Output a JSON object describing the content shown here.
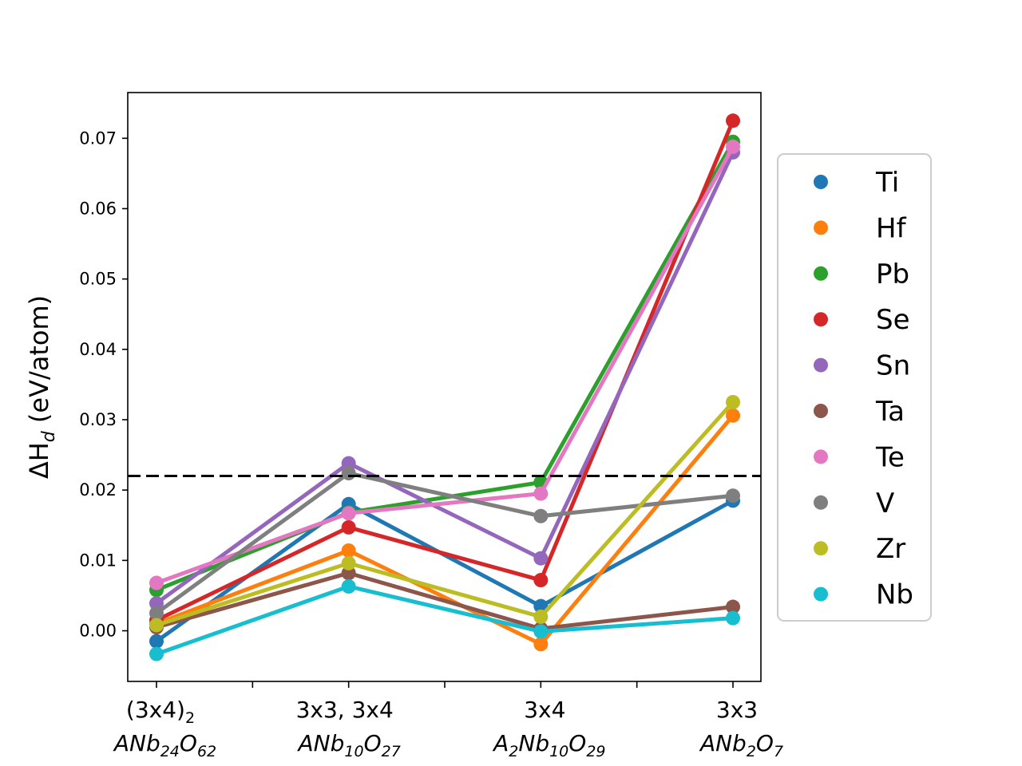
{
  "chart_data": {
    "type": "line",
    "categories": [
      {
        "top": "(3x4)",
        "top_sub": "2",
        "formula": [
          [
            "A",
            ""
          ],
          [
            "Nb",
            "24"
          ],
          [
            "O",
            "62"
          ]
        ]
      },
      {
        "top": "3x3, 3x4",
        "top_sub": "",
        "formula": [
          [
            "A",
            ""
          ],
          [
            "Nb",
            "10"
          ],
          [
            "O",
            "27"
          ]
        ]
      },
      {
        "top": "3x4",
        "top_sub": "",
        "formula": [
          [
            "A",
            "2"
          ],
          [
            "Nb",
            "10"
          ],
          [
            "O",
            "29"
          ]
        ]
      },
      {
        "top": "3x3",
        "top_sub": "",
        "formula": [
          [
            "A",
            ""
          ],
          [
            "Nb",
            "2"
          ],
          [
            "O",
            "7"
          ]
        ]
      }
    ],
    "ylabel": {
      "main": "ΔH",
      "sub": "d",
      "unit": " (eV/atom)"
    },
    "ylim": [
      -0.0072,
      0.0765
    ],
    "yticks": [
      0.0,
      0.01,
      0.02,
      0.03,
      0.04,
      0.05,
      0.06,
      0.07
    ],
    "ytick_labels": [
      "0.00",
      "0.01",
      "0.02",
      "0.03",
      "0.04",
      "0.05",
      "0.06",
      "0.07"
    ],
    "reference_line": 0.022,
    "legend_position": "outside-right",
    "series": [
      {
        "name": "Ti",
        "color": "#1f77b4",
        "values": [
          -0.0015,
          0.018,
          0.0035,
          0.0185
        ]
      },
      {
        "name": "Hf",
        "color": "#ff7f0e",
        "values": [
          0.001,
          0.0114,
          -0.0019,
          0.0306
        ]
      },
      {
        "name": "Pb",
        "color": "#2ca02c",
        "values": [
          0.0058,
          0.0168,
          0.0211,
          0.0695
        ]
      },
      {
        "name": "Se",
        "color": "#d62728",
        "values": [
          0.0015,
          0.0147,
          0.0072,
          0.0725
        ]
      },
      {
        "name": "Sn",
        "color": "#9467bd",
        "values": [
          0.0039,
          0.0238,
          0.0103,
          0.068
        ]
      },
      {
        "name": "Ta",
        "color": "#8c564b",
        "values": [
          0.0005,
          0.0082,
          0.0003,
          0.0034
        ]
      },
      {
        "name": "Te",
        "color": "#e377c2",
        "values": [
          0.0068,
          0.0167,
          0.0195,
          0.0688
        ]
      },
      {
        "name": "V",
        "color": "#7f7f7f",
        "values": [
          0.0025,
          0.0224,
          0.0163,
          0.0192
        ]
      },
      {
        "name": "Zr",
        "color": "#bcbd22",
        "values": [
          0.0008,
          0.0096,
          0.002,
          0.0325
        ]
      },
      {
        "name": "Nb",
        "color": "#17becf",
        "values": [
          -0.0033,
          0.0063,
          -0.0001,
          0.0018
        ]
      }
    ]
  }
}
